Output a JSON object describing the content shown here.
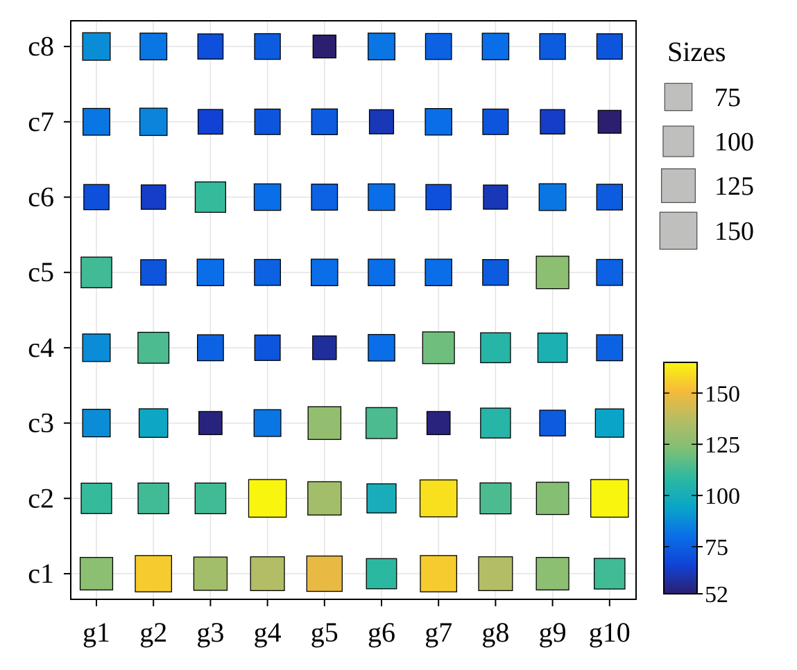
{
  "chart_data": {
    "type": "scatter",
    "marker": "square",
    "x_categories": [
      "g1",
      "g2",
      "g3",
      "g4",
      "g5",
      "g6",
      "g7",
      "g8",
      "g9",
      "g10"
    ],
    "y_categories": [
      "c1",
      "c2",
      "c3",
      "c4",
      "c5",
      "c6",
      "c7",
      "c8"
    ],
    "values": {
      "c8": [
        88,
        82,
        70,
        74,
        52,
        82,
        76,
        80,
        74,
        72
      ],
      "c7": [
        82,
        86,
        66,
        72,
        74,
        62,
        80,
        72,
        64,
        52
      ],
      "c6": [
        70,
        64,
        110,
        80,
        76,
        80,
        70,
        62,
        82,
        74
      ],
      "c5": [
        112,
        72,
        80,
        76,
        80,
        80,
        80,
        74,
        126,
        76
      ],
      "c4": [
        88,
        114,
        76,
        72,
        58,
        80,
        120,
        106,
        102,
        76
      ],
      "c3": [
        88,
        96,
        54,
        82,
        128,
        114,
        54,
        106,
        74,
        94
      ],
      "c2": [
        110,
        112,
        112,
        165,
        132,
        100,
        160,
        114,
        124,
        165
      ],
      "c1": [
        126,
        155,
        132,
        136,
        148,
        108,
        155,
        136,
        126,
        112
      ]
    },
    "sizes": {
      "c8": [
        88,
        82,
        70,
        74,
        52,
        82,
        76,
        80,
        74,
        72
      ],
      "c7": [
        82,
        86,
        66,
        72,
        74,
        62,
        80,
        72,
        64,
        52
      ],
      "c6": [
        70,
        64,
        110,
        80,
        76,
        80,
        70,
        62,
        82,
        74
      ],
      "c5": [
        112,
        72,
        80,
        76,
        80,
        80,
        80,
        74,
        126,
        76
      ],
      "c4": [
        88,
        114,
        76,
        72,
        58,
        80,
        120,
        106,
        102,
        76
      ],
      "c3": [
        88,
        96,
        54,
        82,
        128,
        114,
        54,
        106,
        74,
        94
      ],
      "c2": [
        110,
        112,
        112,
        165,
        132,
        100,
        160,
        114,
        124,
        165
      ],
      "c1": [
        126,
        155,
        132,
        136,
        148,
        108,
        155,
        136,
        126,
        112
      ]
    },
    "size_legend": {
      "title": "Sizes",
      "entries": [
        75,
        100,
        125,
        150
      ],
      "entry_labels": [
        "75",
        "100",
        "125",
        "150"
      ]
    },
    "colorbar": {
      "min": 52,
      "max": 165,
      "ticks": [
        52,
        75,
        100,
        125,
        150
      ],
      "tick_labels": [
        "52",
        "75",
        "100",
        "125",
        "150"
      ],
      "colormap": [
        "#2c1f6f",
        "#1043d6",
        "#0a6fe8",
        "#0aa5c8",
        "#2cb9a0",
        "#7fbf76",
        "#b5bd64",
        "#f5b93a",
        "#f9f50f"
      ]
    },
    "grid": true,
    "legend_placement": "right",
    "xlabel": "",
    "ylabel": "",
    "title": ""
  },
  "colors": {
    "legend_marker_fill": "#bfc0be",
    "legend_marker_edge": "#555555",
    "marker_edge": "#000000",
    "grid": "#e3e3e3"
  }
}
